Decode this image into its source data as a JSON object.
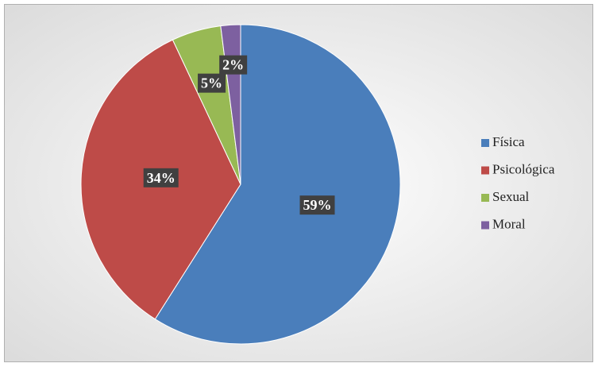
{
  "chart_data": {
    "type": "pie",
    "categories": [
      "Física",
      "Psicológica",
      "Sexual",
      "Moral"
    ],
    "values": [
      59,
      34,
      5,
      2
    ],
    "value_labels": [
      "59%",
      "34%",
      "5%",
      "2%"
    ],
    "colors": [
      "#4a7ebb",
      "#be4b48",
      "#98b954",
      "#7d60a0"
    ],
    "legend": "right"
  }
}
